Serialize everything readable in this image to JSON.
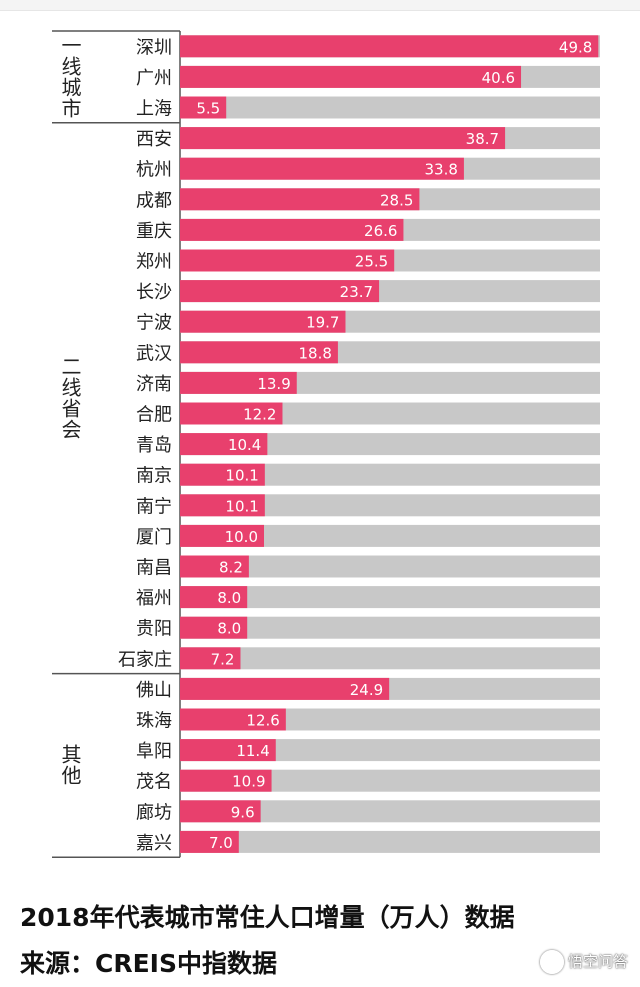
{
  "chart_data": {
    "type": "bar",
    "orientation": "horizontal",
    "xlim": [
      0,
      50
    ],
    "groups": [
      {
        "name": "一线城市",
        "categories": [
          "深圳",
          "广州",
          "上海"
        ]
      },
      {
        "name": "二线省会",
        "categories": [
          "西安",
          "杭州",
          "成都",
          "重庆",
          "郑州",
          "长沙",
          "宁波",
          "武汉",
          "济南",
          "合肥",
          "青岛",
          "南京",
          "南宁",
          "厦门",
          "南昌",
          "福州",
          "贵阳",
          "石家庄"
        ]
      },
      {
        "name": "其他",
        "categories": [
          "佛山",
          "珠海",
          "阜阳",
          "茂名",
          "廊坊",
          "嘉兴"
        ]
      }
    ],
    "categories": [
      "深圳",
      "广州",
      "上海",
      "西安",
      "杭州",
      "成都",
      "重庆",
      "郑州",
      "长沙",
      "宁波",
      "武汉",
      "济南",
      "合肥",
      "青岛",
      "南京",
      "南宁",
      "厦门",
      "南昌",
      "福州",
      "贵阳",
      "石家庄",
      "佛山",
      "珠海",
      "阜阳",
      "茂名",
      "廊坊",
      "嘉兴"
    ],
    "values": [
      49.8,
      40.6,
      5.5,
      38.7,
      33.8,
      28.5,
      26.6,
      25.5,
      23.7,
      19.7,
      18.8,
      13.9,
      12.2,
      10.4,
      10.1,
      10.1,
      10.0,
      8.2,
      8.0,
      8.0,
      7.2,
      24.9,
      12.6,
      11.4,
      10.9,
      9.6,
      7.0
    ],
    "value_labels": [
      "49.8",
      "40.6",
      "5.5",
      "38.7",
      "33.8",
      "28.5",
      "26.6",
      "25.5",
      "23.7",
      "19.7",
      "18.8",
      "13.9",
      "12.2",
      "10.4",
      "10.1",
      "10.1",
      "10.0",
      "8.2",
      "8.0",
      "8.0",
      "7.2",
      "24.9",
      "12.6",
      "11.4",
      "10.9",
      "9.6",
      "7.0"
    ],
    "colors": {
      "bar": "#e8406d",
      "track": "#c8c8c8",
      "grid": "#555555"
    }
  },
  "caption": {
    "line1": "2018年代表城市常住人口增量（万人）数据",
    "line2": "来源：CREIS中指数据"
  },
  "watermark": "悟空问答"
}
